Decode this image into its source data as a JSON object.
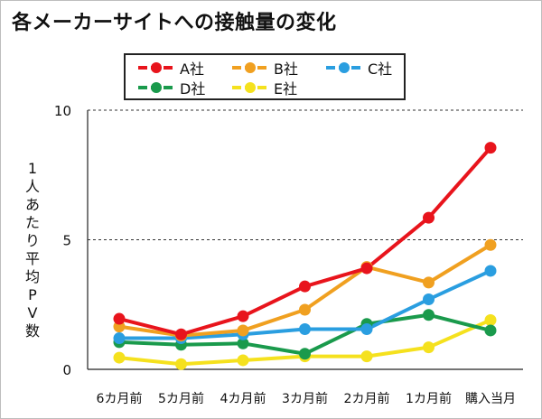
{
  "chart_data": {
    "type": "line",
    "title": "各メーカーサイトへの接触量の変化",
    "ylabel": "1人あたり平均PV数",
    "xlabel": "",
    "categories": [
      "6カ月前",
      "5カ月前",
      "4カ月前",
      "3カ月前",
      "2カ月前",
      "1カ月前",
      "購入当月"
    ],
    "ylim": [
      0,
      10
    ],
    "yticks": [
      0,
      5,
      10
    ],
    "grid": "dashed at 5 and 10",
    "legend_position": "top",
    "series": [
      {
        "name": "A社",
        "color": "#e8141c",
        "values": [
          1.95,
          1.35,
          2.05,
          3.2,
          3.9,
          5.85,
          8.55
        ]
      },
      {
        "name": "B社",
        "color": "#f0a020",
        "values": [
          1.65,
          1.3,
          1.5,
          2.3,
          3.95,
          3.35,
          4.8
        ]
      },
      {
        "name": "C社",
        "color": "#2a9ee0",
        "values": [
          1.2,
          1.2,
          1.35,
          1.55,
          1.55,
          2.7,
          3.8
        ]
      },
      {
        "name": "D社",
        "color": "#1a9a4c",
        "values": [
          1.05,
          0.95,
          1.0,
          0.6,
          1.75,
          2.1,
          1.5
        ]
      },
      {
        "name": "E社",
        "color": "#f5e11e",
        "values": [
          0.45,
          0.2,
          0.35,
          0.5,
          0.5,
          0.85,
          1.9
        ]
      }
    ]
  }
}
